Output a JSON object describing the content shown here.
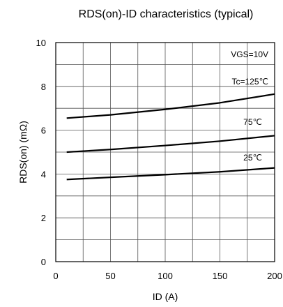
{
  "chart_data": {
    "type": "line",
    "title": "RDS(on)-ID characteristics (typical)",
    "xlabel": "ID (A)",
    "ylabel": "RDS(on) (mΩ)",
    "xlim": [
      0,
      200
    ],
    "ylim": [
      0,
      10
    ],
    "x_major_ticks": [
      0,
      50,
      100,
      150,
      200
    ],
    "x_tick_labels": [
      "0",
      "50",
      "100",
      "150",
      "200"
    ],
    "y_major_ticks": [
      0,
      2,
      4,
      6,
      8,
      10
    ],
    "y_tick_labels": [
      "0",
      "2",
      "4",
      "6",
      "8",
      "10"
    ],
    "x_minor_step": 25,
    "y_minor_step": 1,
    "grid": true,
    "condition_label": "VGS=10V",
    "series": [
      {
        "name": "Tc=125℃",
        "x": [
          10,
          50,
          100,
          150,
          200
        ],
        "y": [
          6.55,
          6.7,
          6.95,
          7.25,
          7.65
        ]
      },
      {
        "name": "75℃",
        "x": [
          10,
          50,
          100,
          150,
          200
        ],
        "y": [
          5.0,
          5.12,
          5.3,
          5.5,
          5.75
        ]
      },
      {
        "name": "25℃",
        "x": [
          10,
          50,
          100,
          150,
          200
        ],
        "y": [
          3.75,
          3.85,
          3.97,
          4.1,
          4.28
        ]
      }
    ],
    "line_color": "#000000"
  }
}
